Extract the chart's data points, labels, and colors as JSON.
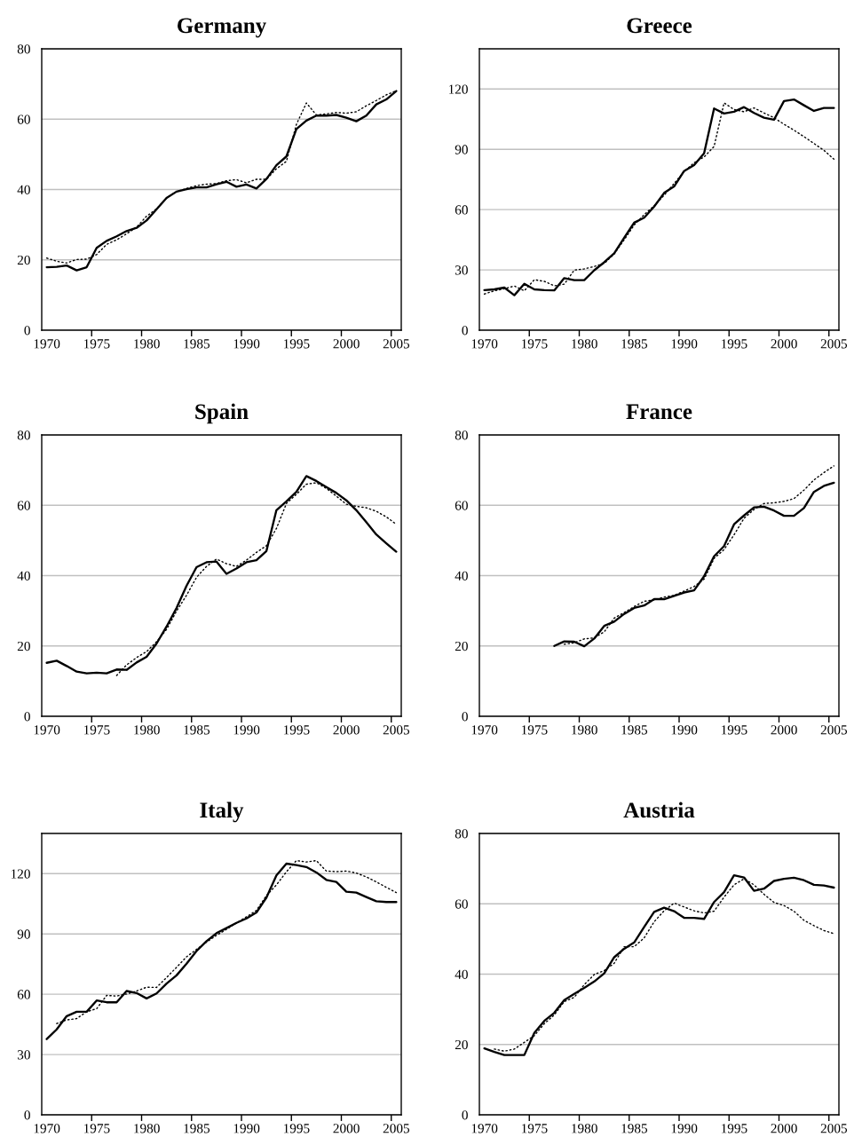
{
  "chart_data": [
    {
      "type": "line",
      "title": "Germany",
      "categories": [
        "1970",
        null,
        null,
        null,
        null,
        "1975",
        null,
        null,
        null,
        null,
        "1980",
        null,
        null,
        null,
        null,
        "1985",
        null,
        null,
        null,
        null,
        "1990",
        null,
        null,
        null,
        null,
        "1995",
        null,
        null,
        null,
        null,
        "2000",
        null,
        null,
        null,
        null,
        "2005"
      ],
      "ylim": [
        0,
        80
      ],
      "yticks": [
        0,
        20,
        40,
        60,
        80
      ],
      "grid": "y",
      "series": [
        {
          "color": "#000000",
          "line_style": "solid",
          "values": [
            17.9,
            18.0,
            18.4,
            17.0,
            17.9,
            23.4,
            25.4,
            26.7,
            28.2,
            29.1,
            31.2,
            34.4,
            37.6,
            39.4,
            40.1,
            40.6,
            40.6,
            41.5,
            42.2,
            40.8,
            41.4,
            40.3,
            43.0,
            46.9,
            49.4,
            57.2,
            59.6,
            61.0,
            61.0,
            61.2,
            60.4,
            59.4,
            61.0,
            64.2,
            65.6,
            68.0
          ]
        },
        {
          "color": "#000000",
          "line_style": "dotted",
          "values": [
            20.5,
            19.6,
            19.1,
            20.1,
            20.2,
            21.5,
            24.4,
            25.7,
            27.4,
            29.3,
            32.4,
            34.5,
            37.6,
            39.4,
            40.3,
            41.1,
            41.5,
            41.7,
            42.5,
            42.8,
            41.9,
            42.9,
            42.9,
            45.9,
            48.0,
            58.5,
            64.6,
            61.2,
            61.5,
            61.9,
            61.7,
            62.1,
            63.8,
            65.3,
            66.9,
            68.1
          ]
        }
      ]
    },
    {
      "type": "line",
      "title": "Greece",
      "categories": [
        "1970",
        null,
        null,
        null,
        null,
        "1975",
        null,
        null,
        null,
        null,
        "1980",
        null,
        null,
        null,
        null,
        "1985",
        null,
        null,
        null,
        null,
        "1990",
        null,
        null,
        null,
        null,
        "1995",
        null,
        null,
        null,
        null,
        "2000",
        null,
        null,
        null,
        null,
        "2005"
      ],
      "ylim": [
        0,
        140
      ],
      "yticks": [
        0,
        30,
        60,
        90,
        120
      ],
      "grid": "y",
      "series": [
        {
          "color": "#000000",
          "line_style": "solid",
          "values": [
            19.9,
            20.3,
            21.2,
            17.4,
            23.1,
            20.3,
            19.9,
            19.8,
            25.9,
            24.9,
            24.9,
            29.8,
            33.8,
            38.3,
            46.0,
            53.5,
            56.0,
            61.5,
            68.3,
            71.5,
            79.2,
            82.1,
            88.0,
            110.3,
            107.8,
            108.7,
            111.0,
            108.1,
            105.7,
            104.7,
            114.0,
            114.8,
            111.9,
            109.1,
            110.6,
            110.6
          ]
        },
        {
          "color": "#000000",
          "line_style": "dotted",
          "values": [
            18.0,
            19.6,
            20.6,
            22.0,
            19.6,
            25.1,
            24.3,
            22.1,
            22.9,
            29.9,
            30.5,
            31.7,
            33.2,
            37.9,
            45.0,
            52.3,
            57.5,
            61.9,
            67.1,
            73.0,
            78.9,
            83.3,
            86.2,
            91.4,
            113.1,
            109.8,
            108.7,
            110.6,
            108.1,
            105.7,
            102.5,
            99.5,
            96.3,
            92.9,
            89.5,
            85.1
          ]
        }
      ]
    },
    {
      "type": "line",
      "title": "Spain",
      "categories": [
        "1970",
        null,
        null,
        null,
        null,
        "1975",
        null,
        null,
        null,
        null,
        "1980",
        null,
        null,
        null,
        null,
        "1985",
        null,
        null,
        null,
        null,
        "1990",
        null,
        null,
        null,
        null,
        "1995",
        null,
        null,
        null,
        null,
        "2000",
        null,
        null,
        null,
        null,
        "2005"
      ],
      "ylim": [
        0,
        80
      ],
      "yticks": [
        0,
        20,
        40,
        60,
        80
      ],
      "grid": "y",
      "series": [
        {
          "color": "#000000",
          "line_style": "solid",
          "values": [
            15.2,
            15.8,
            14.3,
            12.7,
            12.2,
            12.4,
            12.2,
            13.3,
            13.2,
            15.3,
            16.9,
            20.7,
            25.5,
            30.8,
            37.1,
            42.4,
            43.8,
            44.0,
            40.5,
            42.0,
            43.8,
            44.4,
            47.0,
            58.6,
            61.1,
            63.8,
            68.3,
            66.9,
            65.2,
            63.5,
            61.4,
            58.6,
            55.2,
            51.7,
            49.2,
            46.8
          ]
        },
        {
          "color": "#000000",
          "line_style": "dotted",
          "values": [
            null,
            null,
            null,
            null,
            null,
            null,
            null,
            11.6,
            14.6,
            16.7,
            18.4,
            21.2,
            24.7,
            29.9,
            34.4,
            39.5,
            42.6,
            44.7,
            43.4,
            42.6,
            44.4,
            46.6,
            48.5,
            53.4,
            60.5,
            63.1,
            66.0,
            66.4,
            64.8,
            62.6,
            60.3,
            59.7,
            59.3,
            58.3,
            56.7,
            54.6
          ]
        }
      ]
    },
    {
      "type": "line",
      "title": "France",
      "categories": [
        "1970",
        null,
        null,
        null,
        null,
        "1975",
        null,
        null,
        null,
        null,
        "1980",
        null,
        null,
        null,
        null,
        "1985",
        null,
        null,
        null,
        null,
        "1990",
        null,
        null,
        null,
        null,
        "1995",
        null,
        null,
        null,
        null,
        "2000",
        null,
        null,
        null,
        null,
        "2005"
      ],
      "ylim": [
        0,
        80
      ],
      "yticks": [
        0,
        20,
        40,
        60,
        80
      ],
      "grid": "y",
      "series": [
        {
          "color": "#000000",
          "line_style": "solid",
          "values": [
            null,
            null,
            null,
            null,
            null,
            null,
            null,
            20.0,
            21.3,
            21.2,
            19.9,
            22.1,
            25.7,
            26.9,
            29.1,
            30.8,
            31.5,
            33.3,
            33.3,
            34.2,
            35.2,
            35.8,
            39.8,
            45.5,
            48.4,
            54.6,
            57.1,
            59.4,
            59.6,
            58.5,
            57.0,
            57.0,
            59.2,
            63.8,
            65.5,
            66.4
          ]
        },
        {
          "color": "#000000",
          "line_style": "dotted",
          "values": [
            null,
            null,
            null,
            null,
            null,
            null,
            null,
            null,
            20.5,
            20.9,
            22.0,
            22.3,
            24.0,
            27.9,
            29.5,
            31.2,
            32.7,
            33.1,
            33.9,
            34.4,
            35.6,
            36.9,
            39.0,
            44.9,
            47.4,
            51.6,
            56.3,
            58.8,
            60.5,
            60.7,
            61.1,
            61.9,
            64.3,
            67.2,
            69.3,
            71.2
          ]
        }
      ]
    },
    {
      "type": "line",
      "title": "Italy",
      "categories": [
        "1970",
        null,
        null,
        null,
        null,
        "1975",
        null,
        null,
        null,
        null,
        "1980",
        null,
        null,
        null,
        null,
        "1985",
        null,
        null,
        null,
        null,
        "1990",
        null,
        null,
        null,
        null,
        "1995",
        null,
        null,
        null,
        null,
        "2000",
        null,
        null,
        null,
        null,
        "2005"
      ],
      "ylim": [
        0,
        140
      ],
      "yticks": [
        0,
        30,
        60,
        90,
        120
      ],
      "grid": "y",
      "series": [
        {
          "color": "#000000",
          "line_style": "solid",
          "values": [
            37.7,
            42.5,
            49.1,
            51.3,
            51.3,
            56.9,
            56.0,
            56.0,
            61.6,
            60.6,
            57.9,
            60.4,
            65.3,
            69.4,
            75.2,
            81.5,
            86.4,
            90.4,
            92.9,
            95.5,
            97.7,
            100.7,
            108.1,
            119.1,
            125.0,
            124.3,
            123.3,
            120.6,
            116.9,
            115.9,
            111.0,
            110.6,
            108.4,
            106.3,
            105.9,
            105.9
          ]
        },
        {
          "color": "#000000",
          "line_style": "dotted",
          "values": [
            null,
            45.4,
            47.2,
            47.9,
            51.3,
            52.8,
            59.4,
            59.1,
            60.1,
            61.6,
            63.5,
            63.4,
            68.3,
            73.4,
            78.6,
            82.3,
            85.9,
            89.3,
            92.3,
            95.5,
            98.5,
            101.7,
            109.1,
            114.4,
            120.9,
            126.5,
            125.8,
            126.5,
            121.3,
            121.0,
            121.3,
            120.3,
            118.4,
            115.9,
            113.2,
            110.6
          ]
        }
      ]
    },
    {
      "type": "line",
      "title": "Austria",
      "categories": [
        "1970",
        null,
        null,
        null,
        null,
        "1975",
        null,
        null,
        null,
        null,
        "1980",
        null,
        null,
        null,
        null,
        "1985",
        null,
        null,
        null,
        null,
        "1990",
        null,
        null,
        null,
        null,
        "1995",
        null,
        null,
        null,
        null,
        "2000",
        null,
        null,
        null,
        null,
        "2005"
      ],
      "ylim": [
        0,
        80
      ],
      "yticks": [
        0,
        20,
        40,
        60,
        80
      ],
      "grid": "y",
      "series": [
        {
          "color": "#000000",
          "line_style": "solid",
          "values": [
            18.9,
            17.9,
            17.0,
            17.0,
            17.0,
            23.3,
            26.7,
            29.0,
            32.6,
            34.4,
            36.1,
            37.9,
            40.2,
            44.8,
            47.2,
            49.0,
            53.4,
            57.7,
            58.9,
            57.9,
            56.0,
            56.0,
            55.7,
            60.5,
            63.3,
            68.1,
            67.5,
            63.7,
            64.3,
            66.5,
            67.1,
            67.4,
            66.7,
            65.4,
            65.2,
            64.6
          ]
        },
        {
          "color": "#000000",
          "line_style": "dotted",
          "values": [
            null,
            18.7,
            18.1,
            18.7,
            20.6,
            22.5,
            25.9,
            28.4,
            32.2,
            33.4,
            37.0,
            39.9,
            41.0,
            43.1,
            47.8,
            47.8,
            50.3,
            54.9,
            58.0,
            60.2,
            59.1,
            58.0,
            57.4,
            57.9,
            61.9,
            65.4,
            67.1,
            65.4,
            62.7,
            60.4,
            59.5,
            57.9,
            55.3,
            53.8,
            52.4,
            51.5
          ]
        }
      ]
    }
  ]
}
